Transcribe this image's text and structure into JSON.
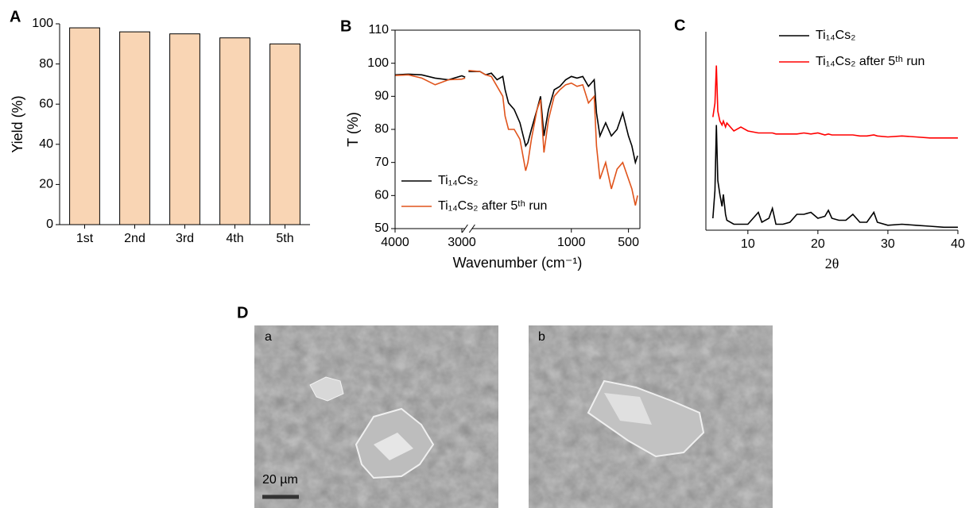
{
  "chart_data": [
    {
      "type": "bar",
      "panel_label": "A",
      "y_label": "Yield (%)",
      "categories": [
        "1st",
        "2nd",
        "3rd",
        "4th",
        "5th"
      ],
      "values": [
        98,
        96,
        95,
        93,
        90
      ],
      "color": "#f9d5b4",
      "ylim": [
        0,
        100
      ],
      "yticks": [
        0,
        20,
        40,
        60,
        80,
        100
      ]
    },
    {
      "type": "line",
      "panel_label": "B",
      "x_label": "Wavenumber (cm⁻¹)",
      "y_label": "T (%)",
      "xlim": [
        4000,
        400
      ],
      "xbreak": [
        2900,
        1900
      ],
      "xticks": [
        4000,
        3000,
        1000,
        500
      ],
      "ylim": [
        50,
        110
      ],
      "yticks": [
        50,
        60,
        70,
        80,
        90,
        100,
        110
      ],
      "x": [
        4000,
        3800,
        3600,
        3400,
        3200,
        3000,
        2950,
        1900,
        1800,
        1750,
        1700,
        1650,
        1600,
        1580,
        1550,
        1500,
        1450,
        1400,
        1380,
        1350,
        1300,
        1270,
        1240,
        1200,
        1150,
        1100,
        1050,
        1000,
        950,
        900,
        850,
        800,
        780,
        750,
        700,
        650,
        600,
        550,
        500,
        470,
        440,
        420
      ],
      "series": [
        {
          "name": "Ti₁₄Cs₂",
          "color": "#000000",
          "values": [
            96.5,
            96.7,
            96.5,
            95.5,
            95,
            96.2,
            95.8,
            97.5,
            97.5,
            96.5,
            97,
            95,
            96,
            92,
            88,
            86,
            82,
            75,
            76,
            80,
            86,
            90,
            78,
            86,
            92,
            93,
            95,
            96,
            95.5,
            96,
            93,
            95,
            85,
            78,
            82,
            78,
            80,
            85,
            78,
            75,
            70,
            72
          ]
        },
        {
          "name": "Ti₁₄Cs₂ after 5ᵗʰ run",
          "color": "#e0541c",
          "values": [
            96.3,
            96.5,
            95.5,
            93.5,
            95,
            95.2,
            95.5,
            97.8,
            97.5,
            96.5,
            96,
            93,
            90,
            84,
            80,
            80,
            77,
            67.5,
            70,
            77,
            86,
            89,
            73,
            83,
            90,
            92,
            93.5,
            94,
            93,
            93.5,
            88,
            90,
            75,
            65,
            70,
            62,
            68,
            70,
            65,
            62,
            57,
            60
          ]
        }
      ]
    },
    {
      "type": "line",
      "panel_label": "C",
      "x_label": "2θ",
      "xlim": [
        4,
        40
      ],
      "xticks": [
        10,
        20,
        30,
        40
      ],
      "ylim": [
        0,
        100
      ],
      "x": [
        5,
        5.3,
        5.5,
        5.7,
        6,
        6.3,
        6.5,
        6.8,
        7,
        8,
        9,
        10,
        11.5,
        12,
        13,
        13.5,
        14,
        15,
        16,
        17,
        18,
        19,
        20,
        21,
        21.5,
        22,
        23,
        24,
        25,
        26,
        27,
        28,
        28.5,
        30,
        32,
        34,
        36,
        38,
        40
      ],
      "series": [
        {
          "name": "Ti₁₄Cs₂",
          "color": "#000000",
          "values": [
            6,
            20,
            53,
            25,
            18,
            12,
            18,
            8,
            5,
            3,
            3,
            3,
            9,
            4,
            6,
            11,
            3,
            3,
            4,
            8,
            8,
            9,
            6,
            7,
            10,
            6,
            5,
            5,
            8,
            4,
            4,
            9,
            4,
            2.5,
            3,
            2.5,
            2,
            1.5,
            1.5
          ]
        },
        {
          "name": "Ti₁₄Cs₂ after 5ᵗʰ run",
          "color": "#ff0000",
          "values": [
            57,
            64,
            83,
            60,
            55,
            53,
            55,
            52,
            54,
            50,
            52,
            50,
            49,
            49,
            49,
            49,
            48.5,
            48.5,
            48.5,
            48.5,
            49,
            48.5,
            49,
            48,
            48.5,
            48,
            48,
            48,
            48,
            47.5,
            47.5,
            48,
            47.5,
            47,
            47.5,
            47,
            46.5,
            46.5,
            46.5
          ]
        }
      ]
    }
  ],
  "panel_d": {
    "label": "D",
    "images": [
      {
        "label": "a",
        "scale_bar": "20 µm"
      },
      {
        "label": "b"
      }
    ]
  }
}
